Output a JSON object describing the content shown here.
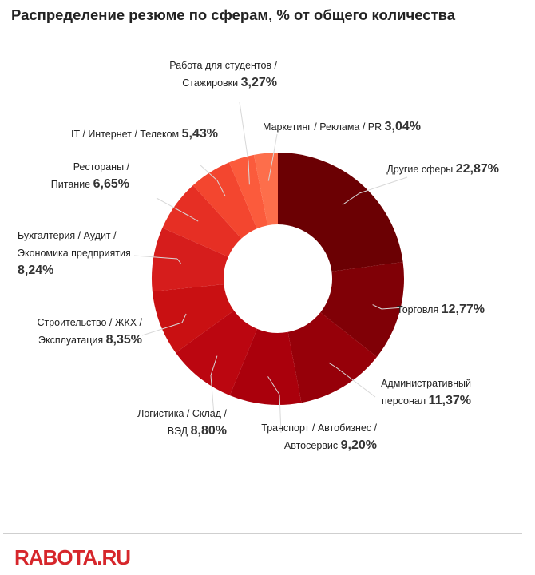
{
  "title": "Распределение резюме по сферам, % от общего количества",
  "logo_text": "RABOTA.RU",
  "chart_data": {
    "type": "pie",
    "title": "Распределение резюме по сферам, % от общего количества",
    "donut": true,
    "start": "12 o'clock",
    "direction": "clockwise",
    "slices": [
      {
        "lines": [
          "Другие сферы"
        ],
        "value": 22.87,
        "pct": "22,87%",
        "color": "#6b0003"
      },
      {
        "lines": [
          "Торговля"
        ],
        "value": 12.77,
        "pct": "12,77%",
        "color": "#800006"
      },
      {
        "lines": [
          "Административный",
          "персонал"
        ],
        "value": 11.37,
        "pct": "11,37%",
        "color": "#960009"
      },
      {
        "lines": [
          "Транспорт / Автобизнес /",
          "Автосервис"
        ],
        "value": 9.2,
        "pct": "9,20%",
        "color": "#aa000c"
      },
      {
        "lines": [
          "Логистика / Склад /",
          "ВЭД"
        ],
        "value": 8.8,
        "pct": "8,80%",
        "color": "#bb0610"
      },
      {
        "lines": [
          "Строительство / ЖКХ /",
          "Эксплуатация"
        ],
        "value": 8.35,
        "pct": "8,35%",
        "color": "#c91012"
      },
      {
        "lines": [
          "Бухгалтерия / Аудит /",
          "Экономика предприятия"
        ],
        "value": 8.24,
        "pct": "8,24%",
        "color": "#d61d1c"
      },
      {
        "lines": [
          "Рестораны /",
          "Питание"
        ],
        "value": 6.65,
        "pct": "6,65%",
        "color": "#e62f24"
      },
      {
        "lines": [
          "IT / Интернет / Телеком"
        ],
        "value": 5.43,
        "pct": "5,43%",
        "color": "#f3462f"
      },
      {
        "lines": [
          "Работа для студентов /",
          "Стажировки"
        ],
        "value": 3.27,
        "pct": "3,27%",
        "color": "#fb5b3c"
      },
      {
        "lines": [
          "Маркетинг / Реклама / PR"
        ],
        "value": 3.04,
        "pct": "3,04%",
        "color": "#fd6e4b"
      }
    ]
  }
}
